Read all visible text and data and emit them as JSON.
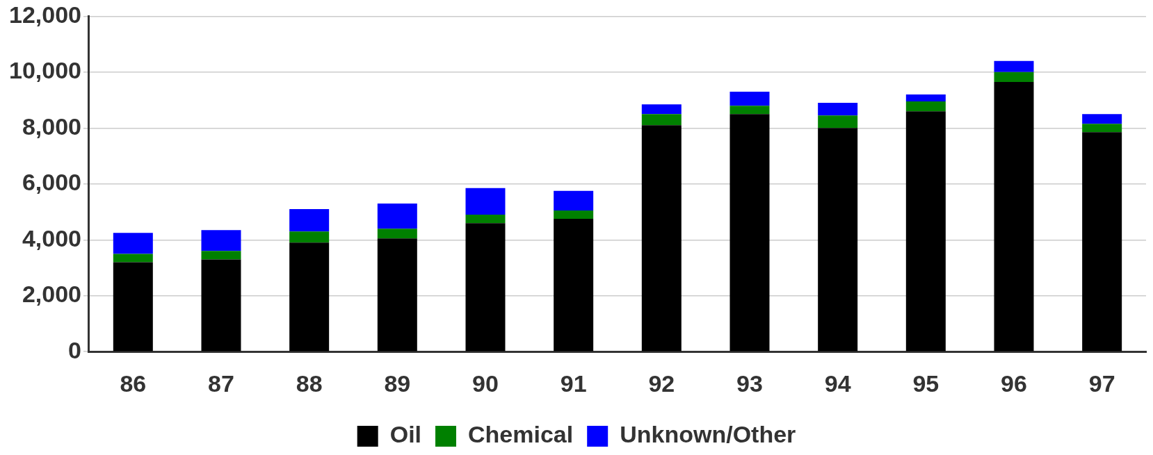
{
  "chart_data": {
    "type": "bar",
    "stacked": true,
    "categories": [
      "86",
      "87",
      "88",
      "89",
      "90",
      "91",
      "92",
      "93",
      "94",
      "95",
      "96",
      "97"
    ],
    "series": [
      {
        "name": "Oil",
        "color": "#000000",
        "values": [
          3200,
          3300,
          3900,
          4050,
          4600,
          4750,
          8100,
          8500,
          8000,
          8600,
          9650,
          7850
        ]
      },
      {
        "name": "Chemical",
        "color": "#008000",
        "values": [
          300,
          300,
          400,
          350,
          300,
          300,
          400,
          300,
          450,
          350,
          350,
          300
        ]
      },
      {
        "name": "Unknown/Other",
        "color": "#0000ff",
        "values": [
          750,
          750,
          800,
          900,
          950,
          700,
          350,
          500,
          450,
          250,
          400,
          350
        ]
      }
    ],
    "ylim": [
      0,
      12000
    ],
    "yticks": [
      {
        "value": 0,
        "label": "0"
      },
      {
        "value": 2000,
        "label": "2,000"
      },
      {
        "value": 4000,
        "label": "4,000"
      },
      {
        "value": 6000,
        "label": "6,000"
      },
      {
        "value": 8000,
        "label": "8,000"
      },
      {
        "value": 10000,
        "label": "10,000"
      },
      {
        "value": 12000,
        "label": "12,000"
      }
    ],
    "grid": "y",
    "legend": "bottom"
  }
}
